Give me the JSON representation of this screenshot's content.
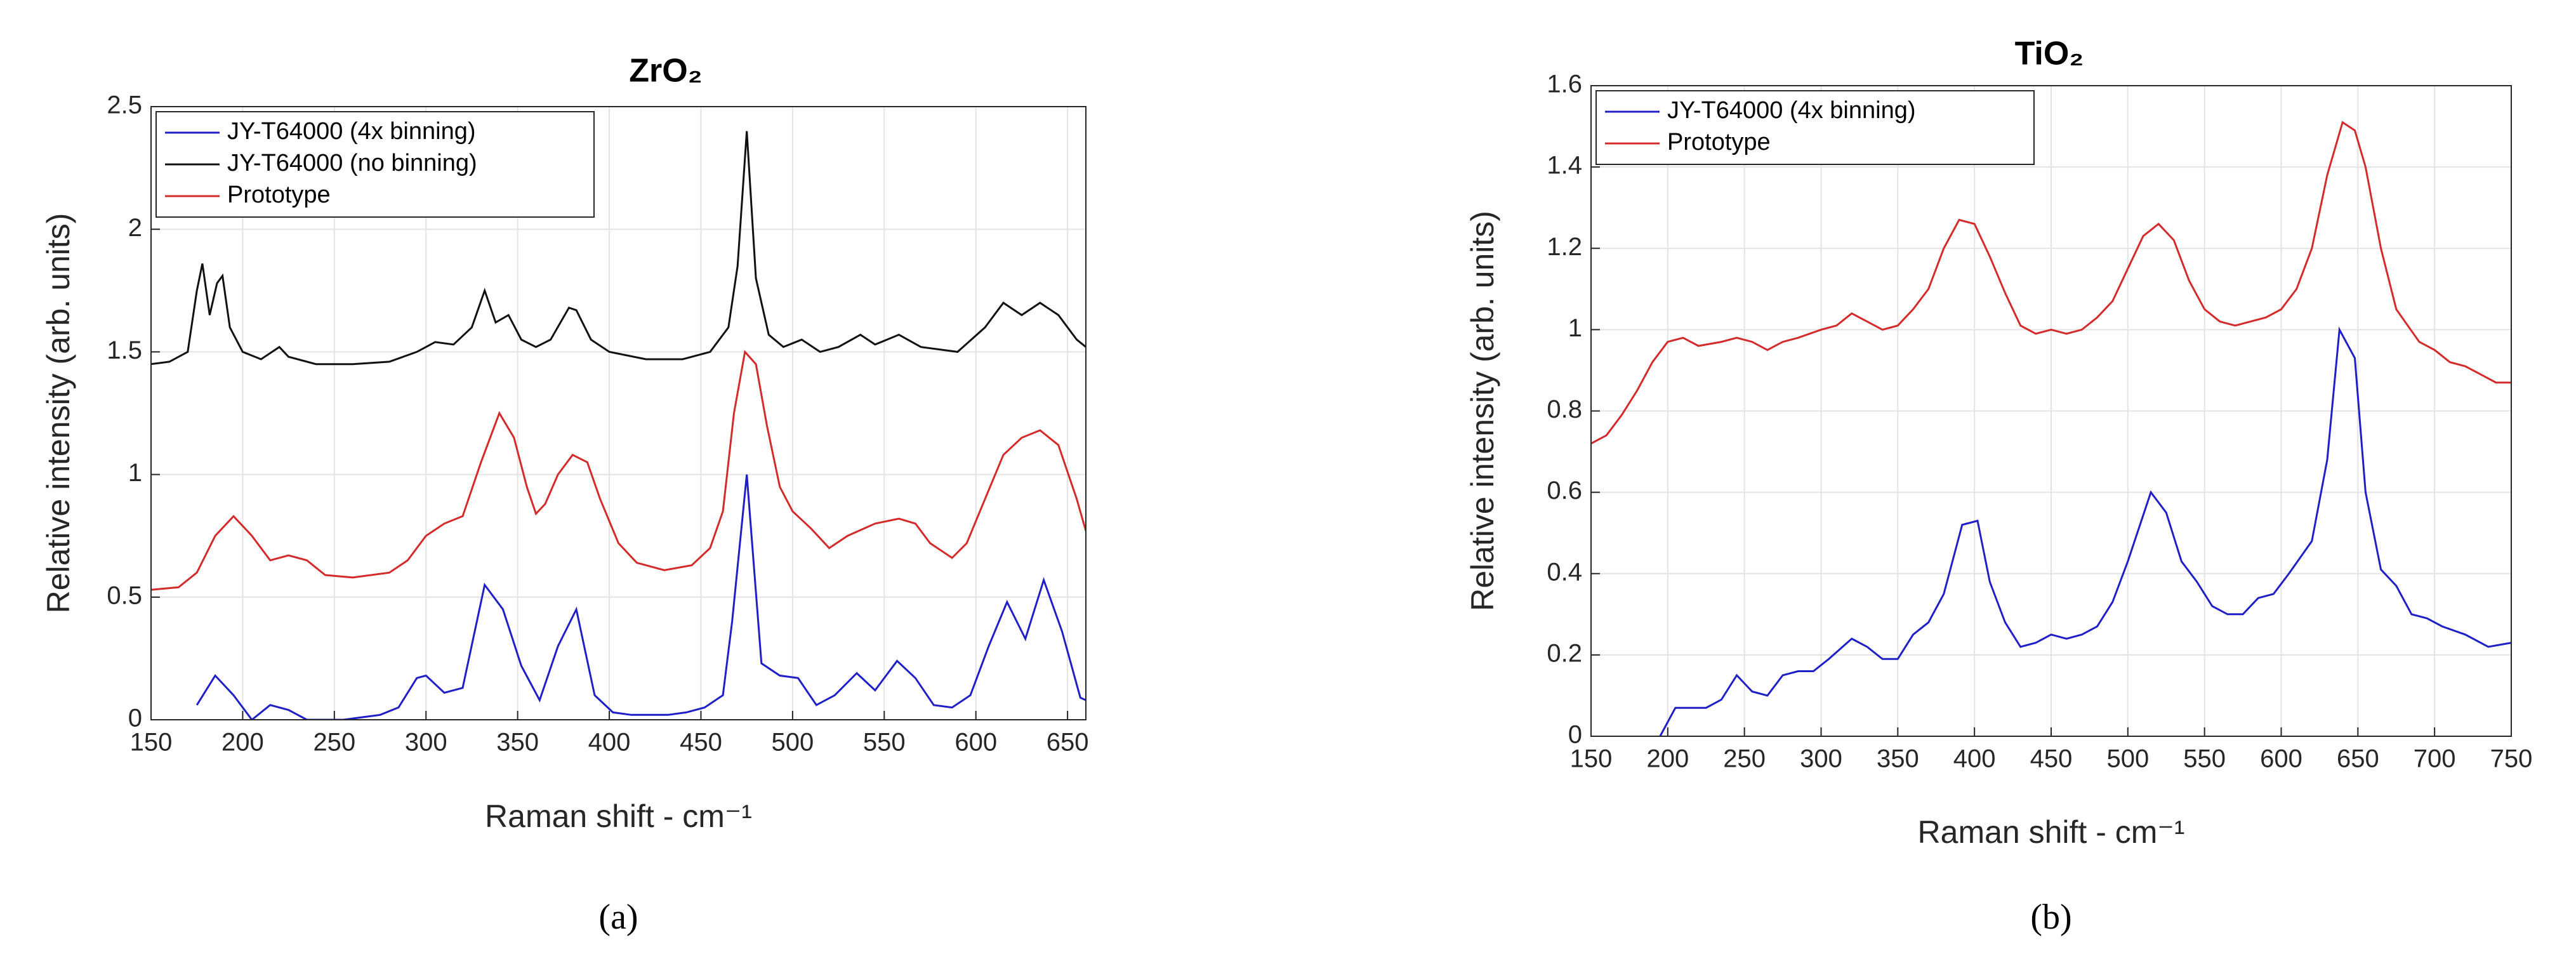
{
  "chart_data": [
    {
      "type": "line",
      "title": "ZrO₂",
      "xlabel": "Raman shift - cm⁻¹",
      "ylabel": "Relative intensity (arb. units)",
      "label": "(a)",
      "xlim": [
        150,
        660
      ],
      "xticks": [
        150,
        200,
        250,
        300,
        350,
        400,
        450,
        500,
        550,
        600,
        650
      ],
      "ylim": [
        0,
        2.5
      ],
      "yticks": [
        0,
        0.5,
        1,
        1.5,
        2,
        2.5
      ],
      "grid": true,
      "legend": "upper left",
      "series": [
        {
          "name": "JY-T64000 (4x binning)",
          "color": "#1f1fc8",
          "x": [
            175,
            185,
            195,
            205,
            215,
            225,
            235,
            245,
            255,
            265,
            275,
            285,
            295,
            300,
            310,
            320,
            332,
            342,
            352,
            362,
            372,
            382,
            392,
            402,
            412,
            422,
            432,
            442,
            452,
            462,
            467,
            475,
            483,
            493,
            503,
            513,
            523,
            535,
            545,
            557,
            567,
            577,
            587,
            597,
            607,
            617,
            627,
            637,
            647,
            657,
            660
          ],
          "values": [
            0.06,
            0.18,
            0.1,
            0.0,
            0.06,
            0.04,
            0.0,
            0.0,
            0.0,
            0.01,
            0.02,
            0.05,
            0.17,
            0.18,
            0.11,
            0.13,
            0.55,
            0.45,
            0.22,
            0.08,
            0.3,
            0.45,
            0.1,
            0.03,
            0.02,
            0.02,
            0.02,
            0.03,
            0.05,
            0.1,
            0.4,
            1.0,
            0.23,
            0.18,
            0.17,
            0.06,
            0.1,
            0.19,
            0.12,
            0.24,
            0.17,
            0.06,
            0.05,
            0.1,
            0.3,
            0.48,
            0.33,
            0.57,
            0.36,
            0.09,
            0.08
          ]
        },
        {
          "name": "JY-T64000 (no binning)",
          "color": "#111111",
          "x": [
            150,
            160,
            170,
            175,
            178,
            182,
            186,
            189,
            193,
            200,
            210,
            220,
            225,
            240,
            260,
            280,
            295,
            305,
            315,
            325,
            332,
            338,
            345,
            352,
            360,
            368,
            378,
            382,
            390,
            400,
            420,
            440,
            455,
            465,
            470,
            475,
            480,
            487,
            495,
            505,
            515,
            525,
            537,
            545,
            558,
            570,
            590,
            605,
            615,
            625,
            635,
            645,
            655,
            660
          ],
          "values": [
            1.45,
            1.46,
            1.5,
            1.75,
            1.86,
            1.65,
            1.78,
            1.81,
            1.6,
            1.5,
            1.47,
            1.52,
            1.48,
            1.45,
            1.45,
            1.46,
            1.5,
            1.54,
            1.53,
            1.6,
            1.75,
            1.62,
            1.65,
            1.55,
            1.52,
            1.55,
            1.68,
            1.67,
            1.55,
            1.5,
            1.47,
            1.47,
            1.5,
            1.6,
            1.85,
            2.4,
            1.8,
            1.57,
            1.52,
            1.55,
            1.5,
            1.52,
            1.57,
            1.53,
            1.57,
            1.52,
            1.5,
            1.6,
            1.7,
            1.65,
            1.7,
            1.65,
            1.55,
            1.52
          ]
        },
        {
          "name": "Prototype",
          "color": "#d42a2a",
          "x": [
            150,
            165,
            175,
            185,
            195,
            205,
            215,
            225,
            235,
            245,
            260,
            280,
            290,
            300,
            310,
            320,
            330,
            340,
            348,
            355,
            360,
            365,
            372,
            380,
            388,
            395,
            405,
            415,
            430,
            445,
            455,
            462,
            468,
            474,
            480,
            486,
            493,
            500,
            510,
            520,
            530,
            545,
            558,
            567,
            575,
            587,
            595,
            605,
            615,
            625,
            635,
            645,
            655,
            660
          ],
          "values": [
            0.53,
            0.54,
            0.6,
            0.75,
            0.83,
            0.75,
            0.65,
            0.67,
            0.65,
            0.59,
            0.58,
            0.6,
            0.65,
            0.75,
            0.8,
            0.83,
            1.05,
            1.25,
            1.15,
            0.95,
            0.84,
            0.88,
            1.0,
            1.08,
            1.05,
            0.9,
            0.72,
            0.64,
            0.61,
            0.63,
            0.7,
            0.85,
            1.25,
            1.5,
            1.45,
            1.2,
            0.95,
            0.85,
            0.78,
            0.7,
            0.75,
            0.8,
            0.82,
            0.8,
            0.72,
            0.66,
            0.72,
            0.9,
            1.08,
            1.15,
            1.18,
            1.12,
            0.9,
            0.77
          ]
        }
      ]
    },
    {
      "type": "line",
      "title": "TiO₂",
      "xlabel": "Raman shift - cm⁻¹",
      "ylabel": "Relative intensity (arb. units)",
      "label": "(b)",
      "xlim": [
        150,
        750
      ],
      "xticks": [
        150,
        200,
        250,
        300,
        350,
        400,
        450,
        500,
        550,
        600,
        650,
        700,
        750
      ],
      "ylim": [
        0,
        1.6
      ],
      "yticks": [
        0,
        0.2,
        0.4,
        0.6,
        0.8,
        1,
        1.2,
        1.4,
        1.6
      ],
      "grid": true,
      "legend": "upper left",
      "series": [
        {
          "name": "JY-T64000 (4x binning)",
          "color": "#1f1fc8",
          "x": [
            195,
            205,
            215,
            225,
            235,
            245,
            255,
            265,
            275,
            285,
            295,
            305,
            320,
            330,
            340,
            350,
            360,
            370,
            380,
            392,
            402,
            410,
            420,
            430,
            440,
            450,
            460,
            470,
            480,
            490,
            500,
            515,
            525,
            535,
            545,
            555,
            565,
            575,
            585,
            595,
            605,
            620,
            630,
            638,
            648,
            655,
            665,
            675,
            685,
            695,
            705,
            720,
            735,
            750
          ],
          "values": [
            0,
            0.07,
            0.07,
            0.07,
            0.09,
            0.15,
            0.11,
            0.1,
            0.15,
            0.16,
            0.16,
            0.19,
            0.24,
            0.22,
            0.19,
            0.19,
            0.25,
            0.28,
            0.35,
            0.52,
            0.53,
            0.38,
            0.28,
            0.22,
            0.23,
            0.25,
            0.24,
            0.25,
            0.27,
            0.33,
            0.43,
            0.6,
            0.55,
            0.43,
            0.38,
            0.32,
            0.3,
            0.3,
            0.34,
            0.35,
            0.4,
            0.48,
            0.68,
            1.0,
            0.93,
            0.6,
            0.41,
            0.37,
            0.3,
            0.29,
            0.27,
            0.25,
            0.22,
            0.23
          ]
        },
        {
          "name": "Prototype",
          "color": "#d42a2a",
          "x": [
            150,
            160,
            170,
            180,
            190,
            200,
            210,
            220,
            235,
            245,
            255,
            265,
            275,
            285,
            300,
            310,
            320,
            330,
            340,
            350,
            360,
            370,
            380,
            390,
            400,
            410,
            420,
            430,
            440,
            450,
            460,
            470,
            480,
            490,
            500,
            510,
            520,
            530,
            540,
            550,
            560,
            570,
            580,
            590,
            600,
            610,
            620,
            630,
            640,
            648,
            655,
            665,
            675,
            690,
            700,
            710,
            720,
            730,
            740,
            750
          ],
          "values": [
            0.72,
            0.74,
            0.79,
            0.85,
            0.92,
            0.97,
            0.98,
            0.96,
            0.97,
            0.98,
            0.97,
            0.95,
            0.97,
            0.98,
            1.0,
            1.01,
            1.04,
            1.02,
            1.0,
            1.01,
            1.05,
            1.1,
            1.2,
            1.27,
            1.26,
            1.18,
            1.09,
            1.01,
            0.99,
            1.0,
            0.99,
            1.0,
            1.03,
            1.07,
            1.15,
            1.23,
            1.26,
            1.22,
            1.12,
            1.05,
            1.02,
            1.01,
            1.02,
            1.03,
            1.05,
            1.1,
            1.2,
            1.38,
            1.51,
            1.49,
            1.4,
            1.2,
            1.05,
            0.97,
            0.95,
            0.92,
            0.91,
            0.89,
            0.87,
            0.87
          ]
        }
      ]
    }
  ]
}
